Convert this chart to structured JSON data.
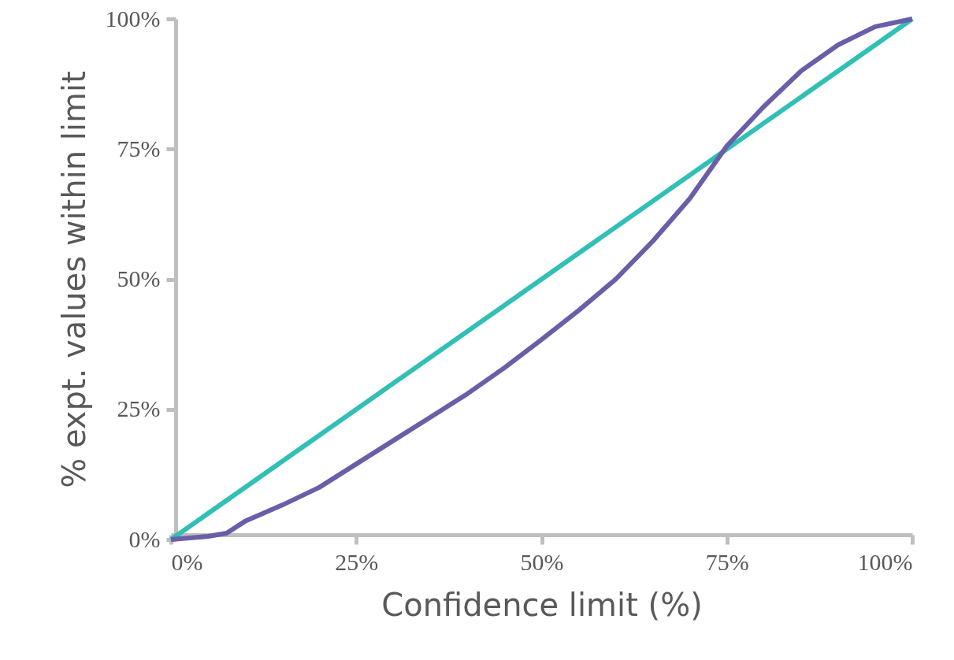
{
  "chart_data": {
    "type": "line",
    "xlabel": "Confidence limit (%)",
    "ylabel": "% expt. values within limit",
    "xlim": [
      0,
      100
    ],
    "ylim": [
      0,
      100
    ],
    "xticks": [
      {
        "value": 0,
        "label": "0%"
      },
      {
        "value": 25,
        "label": "25%"
      },
      {
        "value": 50,
        "label": "50%"
      },
      {
        "value": 75,
        "label": "75%"
      },
      {
        "value": 100,
        "label": "100%"
      }
    ],
    "yticks": [
      {
        "value": 0,
        "label": "0%"
      },
      {
        "value": 25,
        "label": "25%"
      },
      {
        "value": 50,
        "label": "50%"
      },
      {
        "value": 75,
        "label": "75%"
      },
      {
        "value": 100,
        "label": "100%"
      }
    ],
    "grid": false,
    "legend": false,
    "marker": "none",
    "line_style": "solid",
    "series": [
      {
        "color": "#31bfb6",
        "x": [
          0,
          100
        ],
        "values": [
          0,
          100
        ]
      },
      {
        "color": "#6a5ea8",
        "x": [
          0,
          5,
          7.5,
          10,
          15,
          20,
          25,
          30,
          35,
          40,
          45,
          50,
          55,
          60,
          65,
          70,
          75,
          80,
          85,
          90,
          95,
          100
        ],
        "values": [
          0,
          0.6,
          1.2,
          3.5,
          6.6,
          10,
          14.5,
          19,
          23.5,
          28,
          33,
          38.4,
          44,
          50,
          57.3,
          65.5,
          75.6,
          83.2,
          90,
          95,
          98.5,
          100
        ]
      }
    ]
  }
}
